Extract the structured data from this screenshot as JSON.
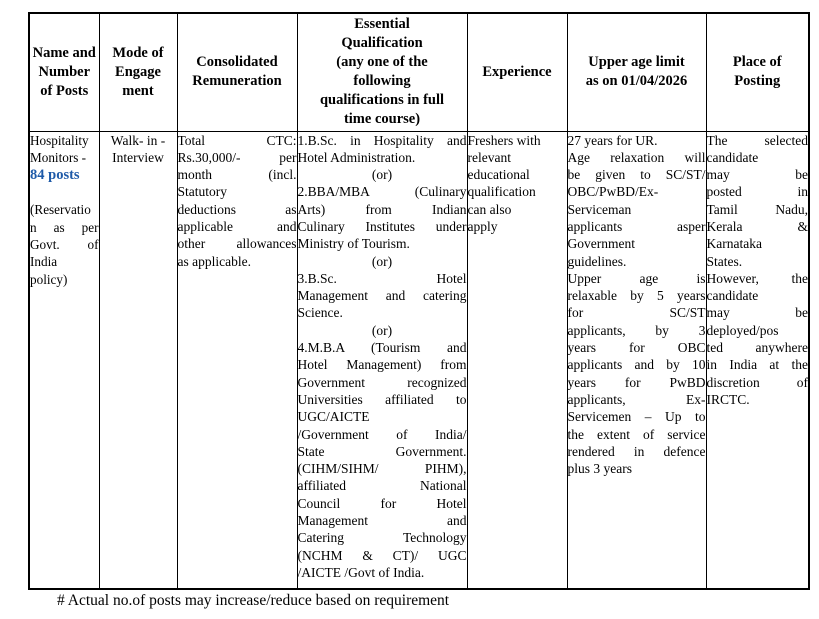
{
  "colors": {
    "accent_blue": "#1e5aa8",
    "text": "#000000",
    "border": "#000000"
  },
  "table": {
    "headers": {
      "name_posts": [
        "Name and",
        "Number",
        "of Posts"
      ],
      "mode": [
        "Mode of",
        "Engage",
        "ment"
      ],
      "remuneration": [
        "Consolidated",
        "Remuneration"
      ],
      "qualification": [
        "Essential",
        "Qualification",
        "(any one of the",
        "following",
        "qualifications in full",
        "time course)"
      ],
      "experience": [
        "Experience"
      ],
      "age_limit": [
        "Upper age limit",
        "as on 01/04/2026"
      ],
      "place": [
        "Place of",
        "Posting"
      ]
    },
    "row": {
      "name_posts": {
        "title_lines": [
          "Hospitality",
          "Monitors -"
        ],
        "count": "84 posts",
        "reservation_paras": [
          [
            "(Reservatio",
            "n as per",
            "Govt. of",
            "India",
            "policy)"
          ]
        ]
      },
      "mode_lines": [
        "Walk- in -",
        "Interview"
      ],
      "remuneration_paras": [
        [
          "Total CTC:",
          "Rs.30,000/- per",
          "month (incl.",
          "Statutory",
          "deductions as",
          "applicable and",
          "other allowances",
          "as applicable."
        ]
      ],
      "qualification_paras": [
        [
          "1.B.Sc. in Hospitality and",
          "Hotel Administration."
        ],
        [
          "(or)"
        ],
        [
          "2.BBA/MBA (Culinary",
          "Arts) from Indian",
          "Culinary Institutes under",
          "Ministry of Tourism."
        ],
        [
          "(or)"
        ],
        [
          "3.B.Sc. Hotel",
          "Management and catering",
          "Science."
        ],
        [
          "(or)"
        ],
        [
          "4.M.B.A (Tourism and",
          "Hotel Management) from",
          "Government recognized",
          "Universities affiliated to",
          "UGC/AICTE",
          "/Government of India/",
          "State Government.",
          "(CIHM/SIHM/ PIHM),",
          "affiliated National",
          "Council for Hotel",
          "Management and",
          "Catering Technology",
          "(NCHM & CT)/ UGC",
          "/AICTE /Govt of India."
        ]
      ],
      "experience_lines": [
        "Freshers with",
        "relevant",
        "educational",
        "qualification",
        "can also",
        "apply"
      ],
      "age_limit_paras": [
        [
          "27 years for UR."
        ],
        [
          "Age relaxation will",
          "be given to SC/ST/",
          "OBC/PwBD/Ex-",
          "Serviceman",
          "applicants asper",
          "Government",
          "guidelines."
        ],
        [
          "Upper age is",
          "relaxable by 5 years",
          "for SC/ST",
          "applicants, by 3",
          "years for OBC",
          "applicants and by 10",
          "years for PwBD",
          "applicants, Ex-",
          "Servicemen – Up to",
          "the extent of service",
          "rendered in defence",
          "plus 3 years"
        ]
      ],
      "place_paras": [
        [
          "The selected",
          "candidate",
          "may be",
          "posted in",
          "Tamil Nadu,",
          "Kerala &",
          "Karnataka",
          "States."
        ],
        [
          "However, the",
          "candidate",
          "may be",
          "deployed/pos",
          "ted anywhere",
          "in India at the",
          "discretion of",
          "IRCTC."
        ]
      ]
    }
  },
  "footer": {
    "note": "# Actual no.of posts may increase/reduce based on requirement"
  }
}
